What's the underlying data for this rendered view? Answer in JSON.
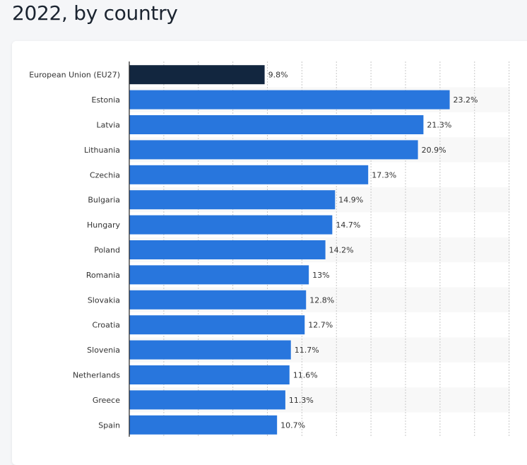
{
  "header": {
    "title": "2022, by country"
  },
  "chart_data": {
    "type": "bar",
    "orientation": "horizontal",
    "title": "2022, by country",
    "categories": [
      "European Union (EU27)",
      "Estonia",
      "Latvia",
      "Lithuania",
      "Czechia",
      "Bulgaria",
      "Hungary",
      "Poland",
      "Romania",
      "Slovakia",
      "Croatia",
      "Slovenia",
      "Netherlands",
      "Greece",
      "Spain"
    ],
    "values": [
      9.8,
      23.2,
      21.3,
      20.9,
      17.3,
      14.9,
      14.7,
      14.2,
      13,
      12.8,
      12.7,
      11.7,
      11.6,
      11.3,
      10.7
    ],
    "value_labels": [
      "9.8%",
      "23.2%",
      "21.3%",
      "20.9%",
      "17.3%",
      "14.9%",
      "14.7%",
      "14.2%",
      "13%",
      "12.8%",
      "12.7%",
      "11.7%",
      "11.6%",
      "11.3%",
      "10.7%"
    ],
    "unit": "%",
    "xlim": [
      0,
      27.5
    ],
    "grid": true,
    "grid_step": 2.5,
    "colors": {
      "highlight": "#12263f",
      "bar": "#2876dd",
      "band": "#f8f8f8"
    }
  }
}
